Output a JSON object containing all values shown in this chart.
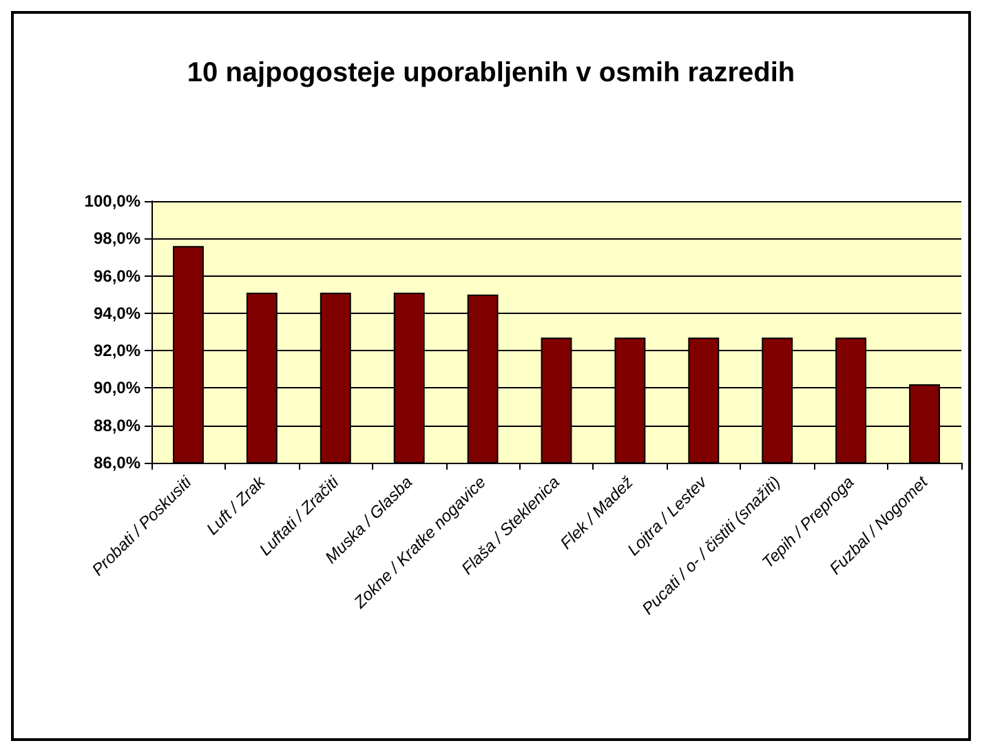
{
  "chart_data": {
    "type": "bar",
    "title": "10 najpogosteje uporabljenih v osmih razredih",
    "categories": [
      "Probati / Poskusiti",
      "Luft / Zrak",
      "Luftati / Zračiti",
      "Muska / Glasba",
      "Zokne / Kratke nogavice",
      "Flaša / Steklenica",
      "Flek / Madež",
      "Lojtra / Lestev",
      "Pucati / o- / čistiti (snažiti)",
      "Tepih / Preproga",
      "Fuzbal / Nogomet"
    ],
    "values": [
      97.6,
      95.1,
      95.1,
      95.1,
      95.0,
      92.7,
      92.7,
      92.7,
      92.7,
      92.7,
      90.2
    ],
    "color": "#800000",
    "ylim": [
      86,
      100
    ],
    "yticks": [
      {
        "value": 86,
        "label": "86,0%"
      },
      {
        "value": 88,
        "label": "88,0%"
      },
      {
        "value": 90,
        "label": "90,0%"
      },
      {
        "value": 92,
        "label": "92,0%"
      },
      {
        "value": 94,
        "label": "94,0%"
      },
      {
        "value": 96,
        "label": "96,0%"
      },
      {
        "value": 98,
        "label": "98,0%"
      },
      {
        "value": 100,
        "label": "100,0%"
      }
    ],
    "grid": "y"
  }
}
